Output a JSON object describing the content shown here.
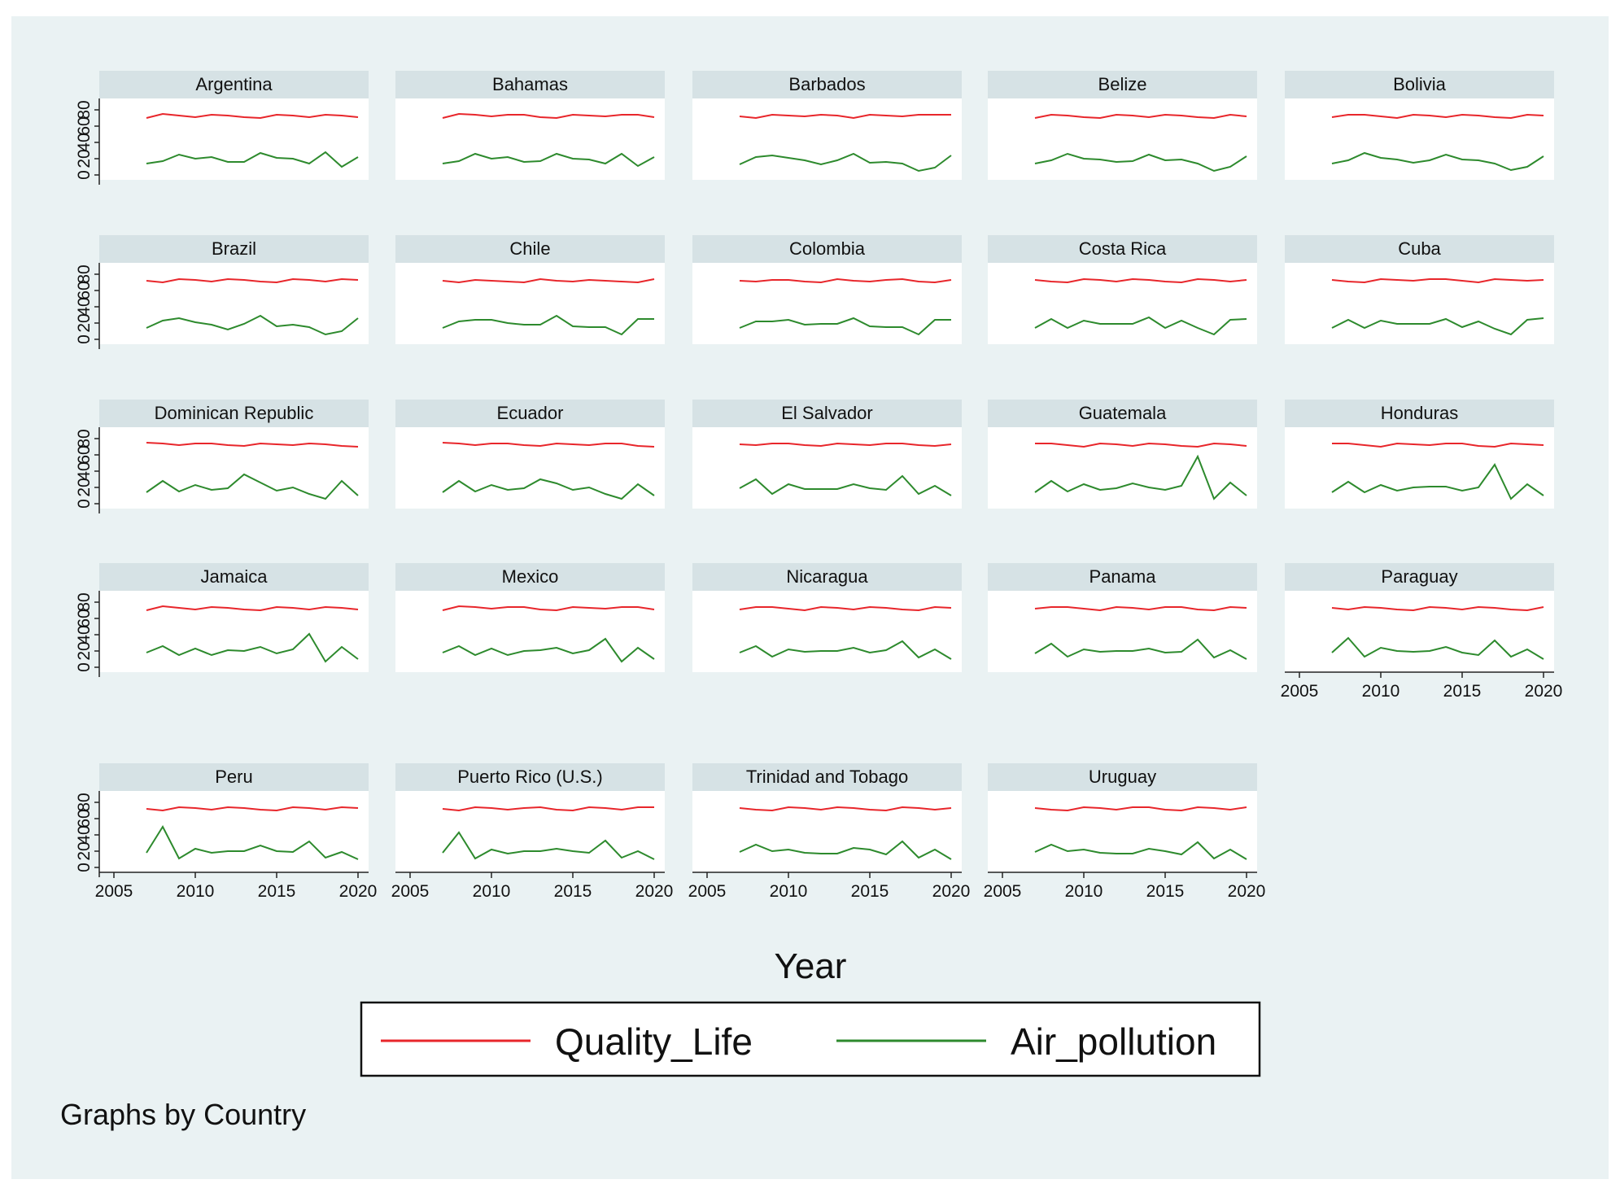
{
  "chart_data": {
    "type": "line",
    "layout": "small-multiples",
    "xlabel": "Year",
    "ylabel": "",
    "xlim": [
      2005,
      2020
    ],
    "ylim": [
      0,
      80
    ],
    "x_ticks": [
      "2005",
      "2010",
      "2015",
      "2020"
    ],
    "y_ticks": [
      "0",
      "20",
      "40",
      "60",
      "80"
    ],
    "x": [
      2007,
      2008,
      2009,
      2010,
      2011,
      2012,
      2013,
      2014,
      2015,
      2016,
      2017,
      2018,
      2019,
      2020
    ],
    "legend": {
      "placement": "bottom",
      "entries": [
        {
          "name": "Quality_Life",
          "color": "#e8262b"
        },
        {
          "name": "Air_pollution",
          "color": "#2d8a2d"
        }
      ]
    },
    "note": "Graphs by Country",
    "grid": false,
    "panels": [
      {
        "country": "Argentina",
        "quality_life": [
          70,
          75,
          73,
          71,
          74,
          73,
          71,
          70,
          74,
          73,
          71,
          74,
          73,
          71
        ],
        "air_pollution": [
          14,
          17,
          25,
          20,
          22,
          16,
          16,
          27,
          21,
          20,
          14,
          28,
          10,
          22
        ]
      },
      {
        "country": "Bahamas",
        "quality_life": [
          70,
          75,
          74,
          72,
          74,
          74,
          71,
          70,
          74,
          73,
          72,
          74,
          74,
          71
        ],
        "air_pollution": [
          14,
          17,
          26,
          20,
          22,
          16,
          17,
          26,
          20,
          19,
          14,
          26,
          11,
          22
        ]
      },
      {
        "country": "Barbados",
        "quality_life": [
          72,
          70,
          74,
          73,
          72,
          74,
          73,
          70,
          74,
          73,
          72,
          74,
          74,
          74
        ],
        "air_pollution": [
          13,
          22,
          24,
          21,
          18,
          13,
          18,
          26,
          15,
          16,
          14,
          5,
          9,
          24
        ]
      },
      {
        "country": "Belize",
        "quality_life": [
          70,
          74,
          73,
          71,
          70,
          74,
          73,
          71,
          74,
          73,
          71,
          70,
          74,
          72
        ],
        "air_pollution": [
          14,
          18,
          26,
          20,
          19,
          16,
          17,
          25,
          18,
          19,
          14,
          5,
          10,
          23
        ]
      },
      {
        "country": "Bolivia",
        "quality_life": [
          71,
          74,
          74,
          72,
          70,
          74,
          73,
          71,
          74,
          73,
          71,
          70,
          74,
          73
        ],
        "air_pollution": [
          14,
          18,
          27,
          21,
          19,
          15,
          18,
          25,
          19,
          18,
          14,
          6,
          10,
          23
        ]
      },
      {
        "country": "Brazil",
        "quality_life": [
          72,
          70,
          74,
          73,
          71,
          74,
          73,
          71,
          70,
          74,
          73,
          71,
          74,
          73
        ],
        "air_pollution": [
          14,
          23,
          26,
          21,
          18,
          12,
          19,
          29,
          16,
          18,
          15,
          6,
          10,
          26
        ]
      },
      {
        "country": "Chile",
        "quality_life": [
          72,
          70,
          73,
          72,
          71,
          70,
          74,
          72,
          71,
          73,
          72,
          71,
          70,
          74
        ],
        "air_pollution": [
          14,
          22,
          24,
          24,
          20,
          18,
          18,
          29,
          16,
          15,
          15,
          6,
          25,
          25
        ]
      },
      {
        "country": "Colombia",
        "quality_life": [
          72,
          71,
          73,
          73,
          71,
          70,
          74,
          72,
          71,
          73,
          74,
          71,
          70,
          73
        ],
        "air_pollution": [
          14,
          22,
          22,
          24,
          18,
          19,
          19,
          26,
          16,
          15,
          15,
          6,
          24,
          24
        ]
      },
      {
        "country": "Costa Rica",
        "quality_life": [
          73,
          71,
          70,
          74,
          73,
          71,
          74,
          73,
          71,
          70,
          74,
          73,
          71,
          73
        ],
        "air_pollution": [
          14,
          25,
          14,
          23,
          19,
          19,
          19,
          27,
          14,
          23,
          14,
          6,
          24,
          25
        ]
      },
      {
        "country": "Cuba",
        "quality_life": [
          73,
          71,
          70,
          74,
          73,
          72,
          74,
          74,
          72,
          70,
          74,
          73,
          72,
          73
        ],
        "air_pollution": [
          14,
          24,
          14,
          23,
          19,
          19,
          19,
          25,
          15,
          22,
          13,
          6,
          24,
          26
        ]
      },
      {
        "country": "Dominican Republic",
        "quality_life": [
          75,
          74,
          72,
          74,
          74,
          72,
          71,
          74,
          73,
          72,
          74,
          73,
          71,
          70
        ],
        "air_pollution": [
          14,
          28,
          15,
          23,
          17,
          19,
          36,
          26,
          16,
          20,
          12,
          6,
          28,
          10
        ]
      },
      {
        "country": "Ecuador",
        "quality_life": [
          75,
          74,
          72,
          74,
          74,
          72,
          71,
          74,
          73,
          72,
          74,
          74,
          71,
          70
        ],
        "air_pollution": [
          14,
          28,
          15,
          23,
          17,
          19,
          30,
          25,
          17,
          20,
          12,
          6,
          24,
          10
        ]
      },
      {
        "country": "El Salvador",
        "quality_life": [
          73,
          72,
          74,
          74,
          72,
          71,
          74,
          73,
          72,
          74,
          74,
          72,
          71,
          73
        ],
        "air_pollution": [
          19,
          30,
          12,
          24,
          18,
          18,
          18,
          24,
          19,
          17,
          34,
          12,
          22,
          10
        ]
      },
      {
        "country": "Guatemala",
        "quality_life": [
          74,
          74,
          72,
          70,
          74,
          73,
          71,
          74,
          73,
          71,
          70,
          74,
          73,
          71
        ],
        "air_pollution": [
          14,
          28,
          15,
          24,
          17,
          19,
          25,
          20,
          17,
          22,
          58,
          6,
          26,
          10
        ]
      },
      {
        "country": "Honduras",
        "quality_life": [
          74,
          74,
          72,
          70,
          74,
          73,
          72,
          74,
          74,
          71,
          70,
          74,
          73,
          72
        ],
        "air_pollution": [
          14,
          27,
          14,
          23,
          16,
          20,
          21,
          21,
          16,
          20,
          48,
          6,
          24,
          10
        ]
      },
      {
        "country": "Jamaica",
        "quality_life": [
          70,
          75,
          73,
          71,
          74,
          73,
          71,
          70,
          74,
          73,
          71,
          74,
          73,
          71
        ],
        "air_pollution": [
          18,
          26,
          15,
          23,
          15,
          21,
          20,
          25,
          17,
          22,
          41,
          7,
          25,
          10
        ]
      },
      {
        "country": "Mexico",
        "quality_life": [
          70,
          75,
          74,
          72,
          74,
          74,
          71,
          70,
          74,
          73,
          72,
          74,
          74,
          71
        ],
        "air_pollution": [
          18,
          26,
          15,
          23,
          15,
          20,
          21,
          24,
          17,
          21,
          35,
          7,
          24,
          10
        ]
      },
      {
        "country": "Nicaragua",
        "quality_life": [
          71,
          74,
          74,
          72,
          70,
          74,
          73,
          71,
          74,
          73,
          71,
          70,
          74,
          73
        ],
        "air_pollution": [
          18,
          26,
          13,
          22,
          19,
          20,
          20,
          24,
          18,
          21,
          32,
          12,
          22,
          10
        ]
      },
      {
        "country": "Panama",
        "quality_life": [
          72,
          74,
          74,
          72,
          70,
          74,
          73,
          71,
          74,
          74,
          71,
          70,
          74,
          73
        ],
        "air_pollution": [
          17,
          29,
          13,
          22,
          19,
          20,
          20,
          23,
          18,
          19,
          34,
          12,
          21,
          10
        ]
      },
      {
        "country": "Paraguay",
        "quality_life": [
          73,
          71,
          74,
          73,
          71,
          70,
          74,
          73,
          71,
          74,
          73,
          71,
          70,
          74
        ],
        "air_pollution": [
          18,
          36,
          13,
          24,
          20,
          19,
          20,
          25,
          18,
          15,
          33,
          13,
          22,
          10
        ]
      },
      {
        "country": "Peru",
        "quality_life": [
          72,
          70,
          74,
          73,
          71,
          74,
          73,
          71,
          70,
          74,
          73,
          71,
          74,
          73
        ],
        "air_pollution": [
          18,
          50,
          11,
          23,
          18,
          20,
          20,
          27,
          20,
          19,
          32,
          12,
          19,
          10
        ]
      },
      {
        "country": "Puerto Rico (U.S.)",
        "quality_life": [
          72,
          70,
          74,
          73,
          71,
          73,
          74,
          71,
          70,
          74,
          73,
          71,
          74,
          74
        ],
        "air_pollution": [
          18,
          43,
          11,
          22,
          17,
          20,
          20,
          23,
          20,
          18,
          33,
          12,
          20,
          10
        ]
      },
      {
        "country": "Trinidad and Tobago",
        "quality_life": [
          73,
          71,
          70,
          74,
          73,
          71,
          74,
          73,
          71,
          70,
          74,
          73,
          71,
          73
        ],
        "air_pollution": [
          19,
          28,
          20,
          22,
          18,
          17,
          17,
          24,
          22,
          16,
          32,
          12,
          22,
          10
        ]
      },
      {
        "country": "Uruguay",
        "quality_life": [
          73,
          71,
          70,
          74,
          73,
          71,
          74,
          74,
          71,
          70,
          74,
          73,
          71,
          74
        ],
        "air_pollution": [
          19,
          28,
          20,
          22,
          18,
          17,
          17,
          23,
          20,
          16,
          31,
          11,
          22,
          10
        ]
      }
    ]
  }
}
